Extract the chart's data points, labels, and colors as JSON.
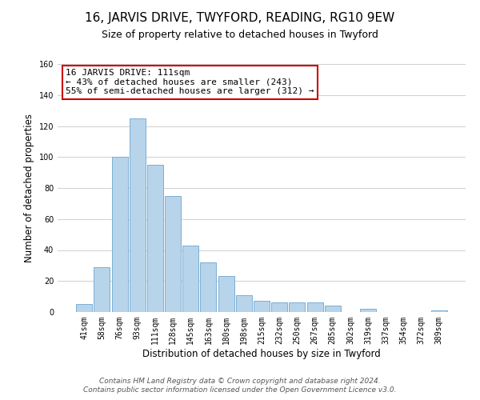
{
  "title": "16, JARVIS DRIVE, TWYFORD, READING, RG10 9EW",
  "subtitle": "Size of property relative to detached houses in Twyford",
  "xlabel": "Distribution of detached houses by size in Twyford",
  "ylabel": "Number of detached properties",
  "bar_labels": [
    "41sqm",
    "58sqm",
    "76sqm",
    "93sqm",
    "111sqm",
    "128sqm",
    "145sqm",
    "163sqm",
    "180sqm",
    "198sqm",
    "215sqm",
    "232sqm",
    "250sqm",
    "267sqm",
    "285sqm",
    "302sqm",
    "319sqm",
    "337sqm",
    "354sqm",
    "372sqm",
    "389sqm"
  ],
  "bar_values": [
    5,
    29,
    100,
    125,
    95,
    75,
    43,
    32,
    23,
    11,
    7,
    6,
    6,
    6,
    4,
    0,
    2,
    0,
    0,
    0,
    1
  ],
  "bar_color": "#b8d4ea",
  "bar_edge_color": "#7aafd4",
  "ylim": [
    0,
    160
  ],
  "yticks": [
    0,
    20,
    40,
    60,
    80,
    100,
    120,
    140,
    160
  ],
  "annotation_box_text": "16 JARVIS DRIVE: 111sqm\n← 43% of detached houses are smaller (243)\n55% of semi-detached houses are larger (312) →",
  "annotation_box_color": "#ffffff",
  "annotation_box_edge_color": "#cc0000",
  "grid_color": "#d0d0d0",
  "background_color": "#ffffff",
  "footer_line1": "Contains HM Land Registry data © Crown copyright and database right 2024.",
  "footer_line2": "Contains public sector information licensed under the Open Government Licence v3.0.",
  "title_fontsize": 11,
  "subtitle_fontsize": 9,
  "axis_label_fontsize": 8.5,
  "tick_fontsize": 7,
  "annotation_fontsize": 8,
  "footer_fontsize": 6.5
}
